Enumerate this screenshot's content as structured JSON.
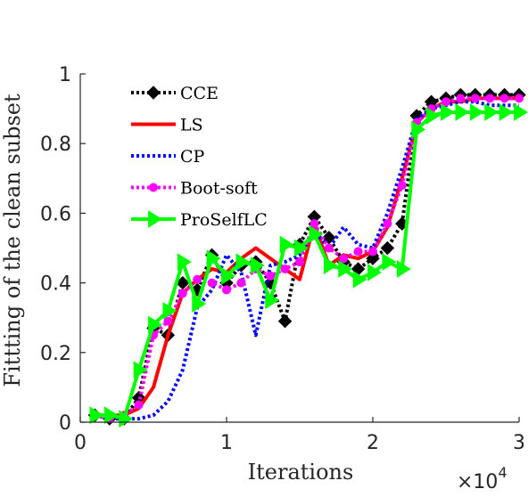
{
  "chart_data": {
    "type": "line",
    "title": "",
    "xlabel": "Iterations",
    "ylabel": "Fittting of the clean subset",
    "x_multiplier_label": "×10",
    "x_multiplier_exponent": "4",
    "xlim": [
      0,
      3
    ],
    "ylim": [
      0,
      1
    ],
    "xticks": [
      0,
      1,
      2,
      3
    ],
    "xtick_labels": [
      "0",
      "1",
      "2",
      "3"
    ],
    "yticks": [
      0,
      0.2,
      0.4,
      0.6,
      0.8,
      1
    ],
    "ytick_labels": [
      "0",
      "0.2",
      "0.4",
      "0.6",
      "0.8",
      "1"
    ],
    "grid": false,
    "legend_position": "top-left",
    "x": [
      0.1,
      0.2,
      0.3,
      0.4,
      0.5,
      0.6,
      0.7,
      0.8,
      0.9,
      1.0,
      1.1,
      1.2,
      1.3,
      1.4,
      1.5,
      1.6,
      1.7,
      1.8,
      1.9,
      2.0,
      2.1,
      2.2,
      2.3,
      2.4,
      2.5,
      2.6,
      2.7,
      2.8,
      2.9,
      3.0
    ],
    "series": [
      {
        "name": "CCE",
        "color": "#000000",
        "dash": "3,3",
        "marker": "diamond",
        "values": [
          0.02,
          0.01,
          0.01,
          0.07,
          0.27,
          0.25,
          0.4,
          0.38,
          0.48,
          0.4,
          0.45,
          0.46,
          0.4,
          0.29,
          0.51,
          0.59,
          0.53,
          0.46,
          0.44,
          0.47,
          0.5,
          0.57,
          0.88,
          0.92,
          0.93,
          0.94,
          0.94,
          0.94,
          0.94,
          0.94
        ]
      },
      {
        "name": "LS",
        "color": "#ff0000",
        "dash": "",
        "marker": "none",
        "values": [
          0.02,
          0.02,
          0.02,
          0.04,
          0.1,
          0.25,
          0.37,
          0.41,
          0.44,
          0.43,
          0.47,
          0.5,
          0.47,
          0.44,
          0.41,
          0.57,
          0.45,
          0.48,
          0.47,
          0.49,
          0.56,
          0.7,
          0.86,
          0.9,
          0.92,
          0.92,
          0.93,
          0.93,
          0.93,
          0.93
        ]
      },
      {
        "name": "CP",
        "color": "#0000ff",
        "dash": "3,3",
        "marker": "none",
        "values": [
          0.02,
          0.01,
          0.01,
          0.01,
          0.02,
          0.06,
          0.15,
          0.33,
          0.38,
          0.48,
          0.43,
          0.25,
          0.45,
          0.46,
          0.48,
          0.55,
          0.5,
          0.56,
          0.51,
          0.5,
          0.6,
          0.73,
          0.87,
          0.9,
          0.91,
          0.92,
          0.92,
          0.91,
          0.91,
          0.91
        ]
      },
      {
        "name": "Boot-soft",
        "color": "#ff00ff",
        "dash": "3,3",
        "marker": "circle",
        "values": [
          0.02,
          0.01,
          0.02,
          0.05,
          0.25,
          0.29,
          0.37,
          0.41,
          0.4,
          0.38,
          0.4,
          0.44,
          0.42,
          0.44,
          0.46,
          0.57,
          0.5,
          0.47,
          0.49,
          0.49,
          0.57,
          0.68,
          0.86,
          0.9,
          0.92,
          0.93,
          0.93,
          0.93,
          0.93,
          0.93
        ]
      },
      {
        "name": "ProSelfLC",
        "color": "#00ff00",
        "dash": "",
        "marker": "triangle-right",
        "values": [
          0.02,
          0.02,
          0.01,
          0.15,
          0.28,
          0.32,
          0.46,
          0.34,
          0.47,
          0.42,
          0.46,
          0.45,
          0.35,
          0.51,
          0.5,
          0.54,
          0.45,
          0.44,
          0.41,
          0.43,
          0.46,
          0.44,
          0.84,
          0.88,
          0.89,
          0.89,
          0.89,
          0.89,
          0.89,
          0.89
        ]
      }
    ]
  }
}
